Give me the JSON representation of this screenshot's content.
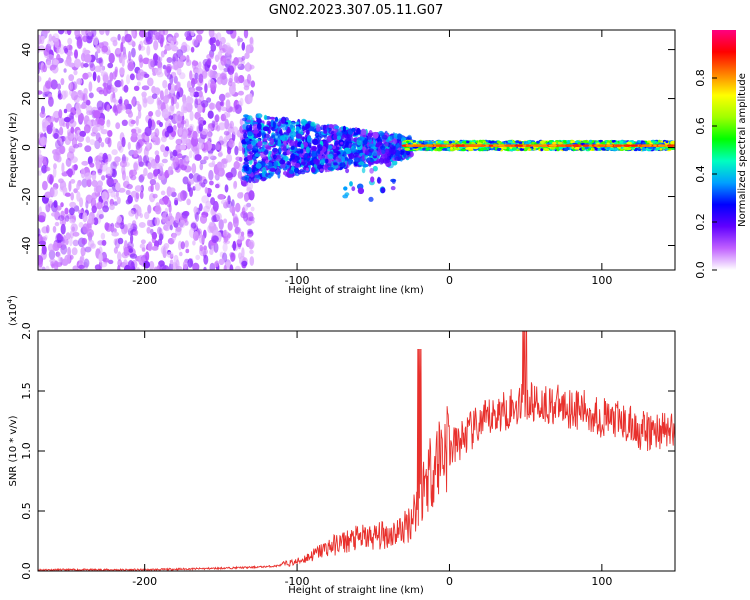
{
  "title": "GN02.2023.307.05.11.G07",
  "chart_data": [
    {
      "type": "heatmap",
      "xlabel": "Height of straight line (km)",
      "ylabel": "Frequency (Hz)",
      "xlim": [
        -270,
        148
      ],
      "ylim": [
        -50,
        48
      ],
      "x_ticks": [
        "-200",
        "-100",
        "0",
        "100"
      ],
      "y_ticks": [
        "-40",
        "-20",
        "0",
        "20",
        "40"
      ],
      "colorbar": {
        "label": "Normalized spectral amplitude",
        "range": [
          0,
          1
        ],
        "ticks": [
          "0.0",
          "0.2",
          "0.4",
          "0.6",
          "0.8"
        ],
        "colors": [
          "#ffffff",
          "#c060ff",
          "#6000ff",
          "#0000ff",
          "#00a0ff",
          "#00ffc0",
          "#00ff00",
          "#a0ff00",
          "#ffff00",
          "#ff8000",
          "#ff0000",
          "#ff0080"
        ]
      },
      "features": {
        "noise_region_x": [
          -270,
          -135
        ],
        "tone_frequency_hz": 0.8,
        "tone_start_x": -30
      }
    },
    {
      "type": "line",
      "xlabel": "Height of straight line (km)",
      "ylabel": "SNR (10 * v/v)",
      "y_multiplier": "(x10",
      "y_multiplier_exp": "4",
      "y_multiplier_close": ")",
      "xlim": [
        -270,
        148
      ],
      "ylim": [
        0,
        2.0
      ],
      "x_ticks": [
        "-200",
        "-100",
        "0",
        "100"
      ],
      "y_ticks": [
        "0.0",
        "0.5",
        "1.0",
        "1.5",
        "2.0"
      ],
      "series": [
        {
          "color": "#e8302c",
          "x": [
            -270,
            -240,
            -200,
            -160,
            -130,
            -115,
            -100,
            -90,
            -80,
            -70,
            -60,
            -50,
            -40,
            -30,
            -25,
            -20,
            -15,
            -10,
            -5,
            0,
            10,
            20,
            30,
            40,
            50,
            60,
            70,
            80,
            90,
            100,
            110,
            120,
            130,
            140,
            148
          ],
          "y": [
            0.01,
            0.01,
            0.01,
            0.02,
            0.03,
            0.04,
            0.07,
            0.12,
            0.18,
            0.22,
            0.25,
            0.26,
            0.28,
            0.32,
            0.4,
            0.55,
            0.72,
            0.82,
            0.92,
            1.0,
            1.12,
            1.22,
            1.3,
            1.36,
            1.4,
            1.4,
            1.38,
            1.36,
            1.33,
            1.28,
            1.25,
            1.2,
            1.15,
            1.18,
            1.15
          ]
        }
      ]
    }
  ]
}
